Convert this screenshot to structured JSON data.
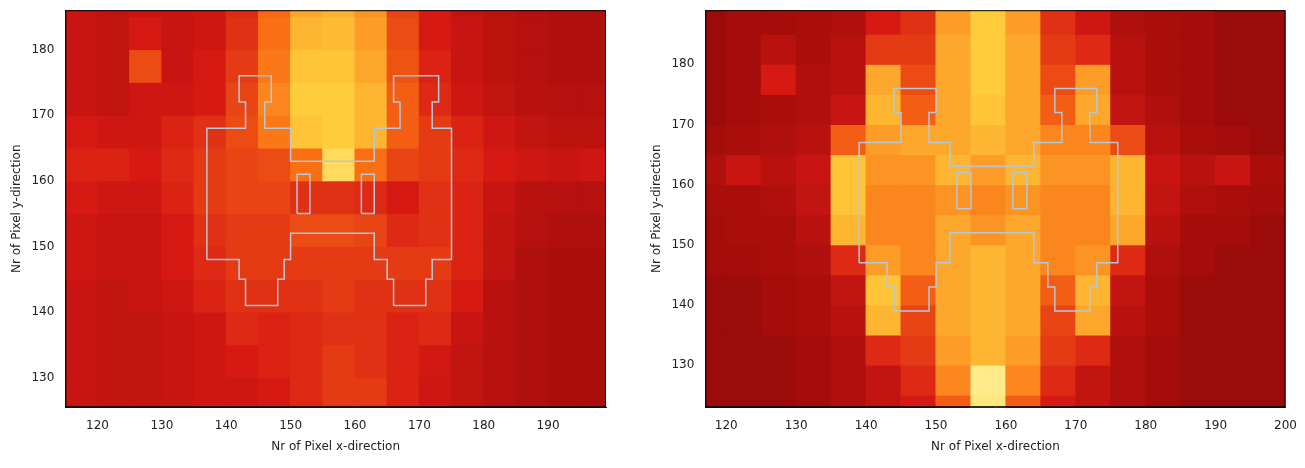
{
  "chart_data": [
    {
      "type": "heatmap",
      "x_label": "Nr of Pixel x-direction",
      "y_label": "Nr of Pixel y-direction",
      "xlim": [
        115,
        199
      ],
      "ylim": [
        125.5,
        186
      ],
      "xticks": [
        120,
        130,
        140,
        150,
        160,
        170,
        180,
        190
      ],
      "yticks": [
        130,
        140,
        150,
        160,
        170,
        180
      ],
      "grid": false,
      "heatmap": {
        "color_range": [
          0,
          100
        ],
        "x_edges": [
          115,
          120,
          125,
          130,
          135,
          140,
          145,
          150,
          155,
          160,
          165,
          170,
          175,
          180,
          185,
          190,
          195,
          200
        ],
        "y_edges": [
          125,
          130,
          135,
          140,
          145,
          150,
          155,
          160,
          165,
          170,
          175,
          180,
          185,
          190
        ],
        "values": [
          [
            30,
            28,
            28,
            30,
            32,
            32,
            35,
            40,
            45,
            45,
            38,
            32,
            28,
            25,
            22,
            20,
            20
          ],
          [
            30,
            28,
            28,
            30,
            32,
            35,
            38,
            40,
            45,
            42,
            38,
            33,
            28,
            25,
            22,
            20,
            20
          ],
          [
            30,
            28,
            28,
            30,
            32,
            40,
            38,
            40,
            42,
            42,
            38,
            40,
            30,
            25,
            22,
            20,
            20
          ],
          [
            30,
            28,
            30,
            32,
            38,
            42,
            42,
            42,
            45,
            42,
            42,
            42,
            35,
            25,
            22,
            20,
            20
          ],
          [
            32,
            30,
            30,
            35,
            40,
            45,
            45,
            45,
            45,
            45,
            45,
            45,
            38,
            28,
            22,
            20,
            20
          ],
          [
            32,
            30,
            30,
            35,
            42,
            45,
            45,
            50,
            50,
            48,
            40,
            42,
            38,
            28,
            24,
            22,
            22
          ],
          [
            35,
            32,
            32,
            38,
            45,
            48,
            48,
            42,
            42,
            40,
            35,
            42,
            38,
            30,
            25,
            24,
            24
          ],
          [
            38,
            38,
            35,
            40,
            45,
            48,
            50,
            60,
            85,
            60,
            48,
            45,
            40,
            35,
            32,
            30,
            32
          ],
          [
            35,
            32,
            32,
            38,
            42,
            50,
            62,
            78,
            80,
            75,
            55,
            45,
            38,
            32,
            28,
            26,
            26
          ],
          [
            30,
            28,
            32,
            32,
            35,
            48,
            65,
            80,
            80,
            75,
            55,
            40,
            32,
            28,
            25,
            24,
            24
          ],
          [
            30,
            28,
            50,
            30,
            35,
            45,
            62,
            78,
            78,
            72,
            52,
            38,
            30,
            26,
            24,
            22,
            22
          ],
          [
            30,
            28,
            35,
            30,
            32,
            42,
            60,
            75,
            76,
            70,
            50,
            35,
            30,
            26,
            24,
            22,
            22
          ],
          [
            30,
            28,
            30,
            30,
            32,
            40,
            58,
            72,
            74,
            68,
            48,
            35,
            28,
            26,
            24,
            22,
            22
          ]
        ]
      },
      "outline": {
        "color": "#b4c8d8",
        "polygons": [
          [
            [
              137,
              148
            ],
            [
              142,
              148
            ],
            [
              142,
              145
            ],
            [
              143,
              145
            ],
            [
              143,
              141
            ],
            [
              148,
              141
            ],
            [
              148,
              145
            ],
            [
              149,
              145
            ],
            [
              149,
              148
            ],
            [
              150,
              148
            ],
            [
              150,
              152
            ],
            [
              163,
              152
            ],
            [
              163,
              148
            ],
            [
              165,
              148
            ],
            [
              165,
              145
            ],
            [
              166,
              145
            ],
            [
              166,
              141
            ],
            [
              171,
              141
            ],
            [
              171,
              145
            ],
            [
              172,
              145
            ],
            [
              172,
              148
            ],
            [
              175,
              148
            ],
            [
              175,
              168
            ],
            [
              172,
              168
            ],
            [
              172,
              172
            ],
            [
              173,
              172
            ],
            [
              173,
              176
            ],
            [
              166,
              176
            ],
            [
              166,
              172
            ],
            [
              167,
              172
            ],
            [
              167,
              168
            ],
            [
              163,
              168
            ],
            [
              163,
              163
            ],
            [
              150,
              163
            ],
            [
              150,
              168
            ],
            [
              146,
              168
            ],
            [
              146,
              172
            ],
            [
              147,
              172
            ],
            [
              147,
              176
            ],
            [
              142,
              176
            ],
            [
              142,
              172
            ],
            [
              143,
              172
            ],
            [
              143,
              168
            ],
            [
              137,
              168
            ],
            [
              137,
              148
            ]
          ],
          [
            [
              151,
              155
            ],
            [
              153,
              155
            ],
            [
              153,
              161
            ],
            [
              151,
              161
            ],
            [
              151,
              155
            ]
          ],
          [
            [
              161,
              155
            ],
            [
              163,
              155
            ],
            [
              163,
              161
            ],
            [
              161,
              161
            ],
            [
              161,
              155
            ]
          ]
        ]
      }
    },
    {
      "type": "heatmap",
      "x_label": "Nr of Pixel x-direction",
      "y_label": "Nr of Pixel y-direction",
      "xlim": [
        117,
        200
      ],
      "ylim": [
        123,
        189
      ],
      "xticks": [
        120,
        130,
        140,
        150,
        160,
        170,
        180,
        190,
        200
      ],
      "yticks": [
        130,
        140,
        150,
        160,
        170,
        180
      ],
      "grid": false,
      "heatmap": {
        "color_range": [
          0,
          100
        ],
        "x_edges": [
          115,
          120,
          125,
          130,
          135,
          140,
          145,
          150,
          155,
          160,
          165,
          170,
          175,
          180,
          185,
          190,
          195,
          200
        ],
        "y_edges": [
          120,
          125,
          130,
          135,
          140,
          145,
          150,
          155,
          160,
          165,
          170,
          175,
          180,
          185,
          190
        ],
        "values": [
          [
            15,
            15,
            15,
            18,
            22,
            28,
            35,
            55,
            90,
            55,
            35,
            28,
            22,
            18,
            15,
            15,
            15
          ],
          [
            15,
            15,
            15,
            18,
            22,
            28,
            40,
            65,
            92,
            65,
            40,
            28,
            22,
            18,
            15,
            15,
            15
          ],
          [
            15,
            15,
            15,
            18,
            22,
            40,
            45,
            70,
            75,
            70,
            45,
            40,
            22,
            18,
            15,
            15,
            15
          ],
          [
            15,
            15,
            18,
            20,
            25,
            75,
            48,
            72,
            75,
            72,
            48,
            72,
            25,
            20,
            15,
            15,
            15
          ],
          [
            15,
            15,
            18,
            20,
            28,
            78,
            55,
            72,
            75,
            72,
            55,
            75,
            28,
            20,
            15,
            15,
            15
          ],
          [
            18,
            18,
            20,
            22,
            40,
            70,
            65,
            72,
            75,
            72,
            65,
            68,
            40,
            22,
            18,
            15,
            15
          ],
          [
            18,
            20,
            20,
            25,
            75,
            65,
            65,
            72,
            68,
            72,
            65,
            65,
            72,
            25,
            18,
            18,
            15
          ],
          [
            20,
            20,
            22,
            28,
            78,
            65,
            65,
            68,
            65,
            68,
            65,
            65,
            75,
            28,
            22,
            20,
            18
          ],
          [
            22,
            30,
            25,
            30,
            78,
            68,
            68,
            75,
            70,
            75,
            68,
            68,
            75,
            30,
            25,
            30,
            20
          ],
          [
            18,
            20,
            22,
            25,
            55,
            70,
            72,
            72,
            75,
            72,
            65,
            65,
            50,
            25,
            20,
            18,
            15
          ],
          [
            15,
            18,
            20,
            22,
            30,
            75,
            55,
            72,
            78,
            72,
            55,
            72,
            28,
            22,
            18,
            15,
            15
          ],
          [
            15,
            18,
            35,
            22,
            25,
            72,
            50,
            72,
            80,
            72,
            50,
            70,
            25,
            20,
            18,
            15,
            15
          ],
          [
            15,
            18,
            25,
            20,
            25,
            45,
            45,
            72,
            80,
            72,
            45,
            40,
            25,
            20,
            18,
            15,
            15
          ],
          [
            15,
            18,
            18,
            20,
            22,
            35,
            42,
            70,
            80,
            70,
            42,
            32,
            22,
            20,
            18,
            15,
            15
          ]
        ]
      },
      "outline": {
        "color": "#b4c8d8",
        "polygons": [
          [
            [
              139,
              147
            ],
            [
              143,
              147
            ],
            [
              143,
              143
            ],
            [
              144,
              143
            ],
            [
              144,
              139
            ],
            [
              149,
              139
            ],
            [
              149,
              143
            ],
            [
              150,
              143
            ],
            [
              150,
              147
            ],
            [
              152,
              147
            ],
            [
              152,
              152
            ],
            [
              164,
              152
            ],
            [
              164,
              147
            ],
            [
              166,
              147
            ],
            [
              166,
              143
            ],
            [
              167,
              143
            ],
            [
              167,
              139
            ],
            [
              172,
              139
            ],
            [
              172,
              143
            ],
            [
              173,
              143
            ],
            [
              173,
              147
            ],
            [
              176,
              147
            ],
            [
              176,
              167
            ],
            [
              172,
              167
            ],
            [
              172,
              172
            ],
            [
              173,
              172
            ],
            [
              173,
              176
            ],
            [
              167,
              176
            ],
            [
              167,
              172
            ],
            [
              168,
              172
            ],
            [
              168,
              167
            ],
            [
              164,
              167
            ],
            [
              164,
              163
            ],
            [
              152,
              163
            ],
            [
              152,
              167
            ],
            [
              149,
              167
            ],
            [
              149,
              172
            ],
            [
              150,
              172
            ],
            [
              150,
              176
            ],
            [
              144,
              176
            ],
            [
              144,
              172
            ],
            [
              145,
              172
            ],
            [
              145,
              167
            ],
            [
              139,
              167
            ],
            [
              139,
              147
            ]
          ],
          [
            [
              153,
              156
            ],
            [
              155,
              156
            ],
            [
              155,
              162
            ],
            [
              153,
              162
            ],
            [
              153,
              156
            ]
          ],
          [
            [
              161,
              156
            ],
            [
              163,
              156
            ],
            [
              163,
              162
            ],
            [
              161,
              162
            ],
            [
              161,
              156
            ]
          ]
        ]
      }
    }
  ]
}
